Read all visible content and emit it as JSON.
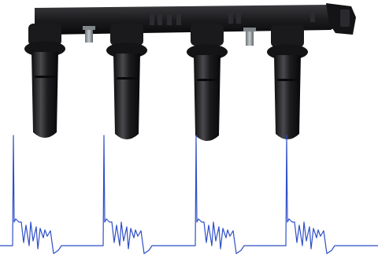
{
  "image": {
    "subject": "ignition-coil-pack",
    "parts": {
      "towers": 4,
      "mounting_studs": 2
    },
    "waveform": {
      "pulses": 4
    },
    "colors": {
      "background": "#ffffff",
      "coil_body": "#1c1c1e",
      "coil_highlight": "#4a4a4e",
      "stud_metal": "#9aa0a4",
      "trace": "#2f4fc8"
    }
  }
}
